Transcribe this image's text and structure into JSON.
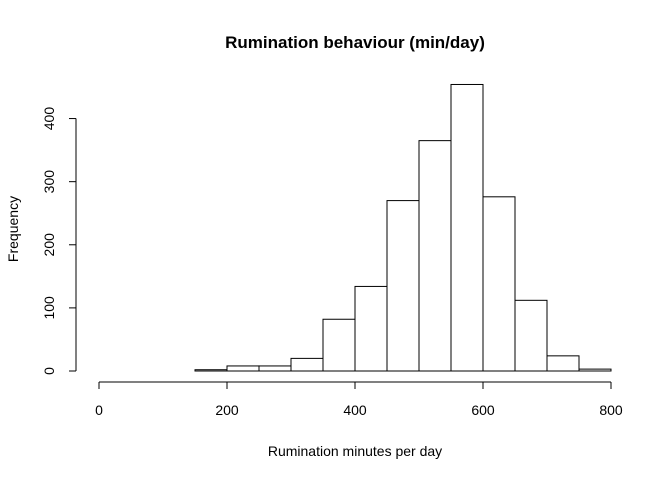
{
  "chart_data": {
    "type": "bar",
    "title": "Rumination behaviour (min/day)",
    "xlabel": "Rumination minutes per day",
    "ylabel": "Frequency",
    "xlim": [
      0,
      800
    ],
    "ylim": [
      0,
      450
    ],
    "x_ticks": [
      0,
      200,
      400,
      600,
      800
    ],
    "y_ticks": [
      0,
      100,
      200,
      300,
      400
    ],
    "bin_width": 50,
    "bins": [
      {
        "start": 0,
        "end": 50,
        "count": 0
      },
      {
        "start": 50,
        "end": 100,
        "count": 0
      },
      {
        "start": 100,
        "end": 150,
        "count": 0
      },
      {
        "start": 150,
        "end": 200,
        "count": 2
      },
      {
        "start": 200,
        "end": 250,
        "count": 8
      },
      {
        "start": 250,
        "end": 300,
        "count": 8
      },
      {
        "start": 300,
        "end": 350,
        "count": 20
      },
      {
        "start": 350,
        "end": 400,
        "count": 82
      },
      {
        "start": 400,
        "end": 450,
        "count": 134
      },
      {
        "start": 450,
        "end": 500,
        "count": 270
      },
      {
        "start": 500,
        "end": 550,
        "count": 365
      },
      {
        "start": 550,
        "end": 600,
        "count": 454
      },
      {
        "start": 600,
        "end": 650,
        "count": 276
      },
      {
        "start": 650,
        "end": 700,
        "count": 112
      },
      {
        "start": 700,
        "end": 750,
        "count": 24
      },
      {
        "start": 750,
        "end": 800,
        "count": 3
      }
    ],
    "grid": false,
    "legend": "none",
    "bar_fill": "#ffffff",
    "bar_stroke": "#000000"
  }
}
